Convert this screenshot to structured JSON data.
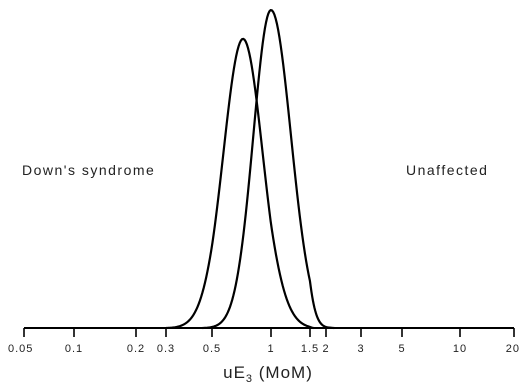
{
  "chart_data": {
    "type": "line",
    "xscale": "log",
    "xlabel_main": "uE",
    "xlabel_sub": "3",
    "xlabel_unit": " (MoM)",
    "xlim": [
      0.05,
      20
    ],
    "ticks": [
      {
        "value": 0.05,
        "label": "0.05"
      },
      {
        "value": 0.1,
        "label": "0.1"
      },
      {
        "value": 0.2,
        "label": "0.2"
      },
      {
        "value": 0.3,
        "label": "0.3"
      },
      {
        "value": 0.5,
        "label": "0.5"
      },
      {
        "value": 1,
        "label": "1"
      },
      {
        "value": 1.5,
        "label": "1.5"
      },
      {
        "value": 2,
        "label": "2"
      },
      {
        "value": 3,
        "label": "3"
      },
      {
        "value": 5,
        "label": "5"
      },
      {
        "value": 10,
        "label": "10"
      },
      {
        "value": 20,
        "label": "20"
      }
    ],
    "grid": false,
    "legend": "none",
    "series": [
      {
        "name": "Down's syndrome",
        "median": 0.72,
        "sd_log10": 0.1,
        "peak_density": 0.91,
        "x_range": [
          0.3,
          1.6
        ]
      },
      {
        "name": "Unaffected",
        "median": 1.0,
        "sd_log10": 0.09,
        "peak_density": 1.0,
        "x_range": [
          0.45,
          2.2
        ]
      }
    ]
  }
}
